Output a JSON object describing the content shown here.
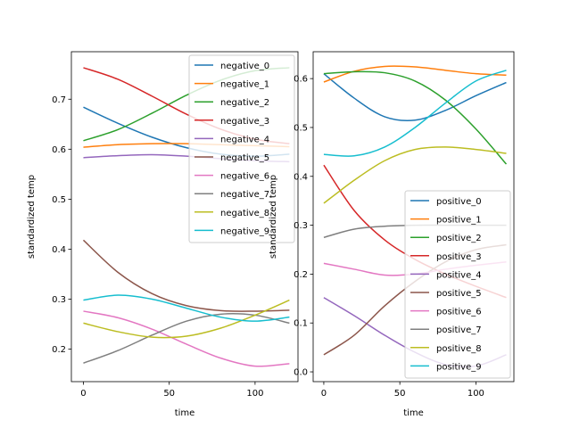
{
  "chart_data": [
    {
      "type": "line",
      "xlabel": "time",
      "ylabel": "standardized temp",
      "xlim": [
        -7,
        125
      ],
      "ylim": [
        0.135,
        0.795
      ],
      "xticks": [
        0,
        50,
        100
      ],
      "yticks": [
        0.2,
        0.3,
        0.4,
        0.5,
        0.6,
        0.7
      ],
      "grid": false,
      "legend": "top-right",
      "x": [
        0,
        20,
        40,
        60,
        80,
        100,
        120
      ],
      "series": [
        {
          "name": "negative_0",
          "color": "#1f77b4",
          "values": [
            0.684,
            0.652,
            0.624,
            0.603,
            0.59,
            0.586,
            0.59
          ]
        },
        {
          "name": "negative_1",
          "color": "#ff7f0e",
          "values": [
            0.604,
            0.609,
            0.611,
            0.611,
            0.609,
            0.607,
            0.605
          ]
        },
        {
          "name": "negative_2",
          "color": "#2ca02c",
          "values": [
            0.617,
            0.639,
            0.672,
            0.708,
            0.738,
            0.757,
            0.763
          ]
        },
        {
          "name": "negative_3",
          "color": "#d62728",
          "values": [
            0.763,
            0.74,
            0.706,
            0.67,
            0.64,
            0.62,
            0.611
          ]
        },
        {
          "name": "negative_4",
          "color": "#9467bd",
          "values": [
            0.583,
            0.587,
            0.589,
            0.586,
            0.581,
            0.577,
            0.575
          ]
        },
        {
          "name": "negative_5",
          "color": "#8c564b",
          "values": [
            0.418,
            0.354,
            0.311,
            0.287,
            0.277,
            0.276,
            0.278
          ]
        },
        {
          "name": "negative_6",
          "color": "#e377c2",
          "values": [
            0.276,
            0.263,
            0.24,
            0.21,
            0.182,
            0.166,
            0.171
          ]
        },
        {
          "name": "negative_7",
          "color": "#7f7f7f",
          "values": [
            0.172,
            0.197,
            0.228,
            0.256,
            0.27,
            0.268,
            0.252
          ]
        },
        {
          "name": "negative_8",
          "color": "#bcbd22",
          "values": [
            0.252,
            0.235,
            0.224,
            0.226,
            0.242,
            0.268,
            0.298
          ]
        },
        {
          "name": "negative_9",
          "color": "#17becf",
          "values": [
            0.298,
            0.308,
            0.3,
            0.282,
            0.264,
            0.256,
            0.264
          ]
        }
      ]
    },
    {
      "type": "line",
      "xlabel": "time",
      "ylabel": "standardized temp",
      "xlim": [
        -7,
        125
      ],
      "ylim": [
        -0.02,
        0.655
      ],
      "xticks": [
        0,
        50,
        100
      ],
      "yticks": [
        0.0,
        0.1,
        0.2,
        0.3,
        0.4,
        0.5,
        0.6
      ],
      "grid": false,
      "legend": "bottom-right",
      "x": [
        0,
        20,
        40,
        60,
        80,
        100,
        120
      ],
      "series": [
        {
          "name": "positive_0",
          "color": "#1f77b4",
          "values": [
            0.61,
            0.56,
            0.522,
            0.515,
            0.535,
            0.565,
            0.592
          ]
        },
        {
          "name": "positive_1",
          "color": "#ff7f0e",
          "values": [
            0.593,
            0.615,
            0.625,
            0.624,
            0.617,
            0.61,
            0.607
          ]
        },
        {
          "name": "positive_2",
          "color": "#2ca02c",
          "values": [
            0.61,
            0.614,
            0.612,
            0.595,
            0.556,
            0.497,
            0.425
          ]
        },
        {
          "name": "positive_3",
          "color": "#d62728",
          "values": [
            0.423,
            0.33,
            0.27,
            0.23,
            0.2,
            0.175,
            0.152
          ]
        },
        {
          "name": "positive_4",
          "color": "#9467bd",
          "values": [
            0.152,
            0.115,
            0.075,
            0.04,
            0.015,
            0.012,
            0.035
          ]
        },
        {
          "name": "positive_5",
          "color": "#8c564b",
          "values": [
            0.035,
            0.075,
            0.135,
            0.185,
            0.225,
            0.25,
            0.26
          ]
        },
        {
          "name": "positive_6",
          "color": "#e377c2",
          "values": [
            0.222,
            0.21,
            0.198,
            0.2,
            0.21,
            0.218,
            0.225
          ]
        },
        {
          "name": "positive_7",
          "color": "#7f7f7f",
          "values": [
            0.275,
            0.292,
            0.298,
            0.3,
            0.3,
            0.3,
            0.3
          ]
        },
        {
          "name": "positive_8",
          "color": "#bcbd22",
          "values": [
            0.345,
            0.392,
            0.432,
            0.455,
            0.46,
            0.455,
            0.447
          ]
        },
        {
          "name": "positive_9",
          "color": "#17becf",
          "values": [
            0.445,
            0.442,
            0.46,
            0.5,
            0.55,
            0.595,
            0.617
          ]
        }
      ]
    }
  ]
}
